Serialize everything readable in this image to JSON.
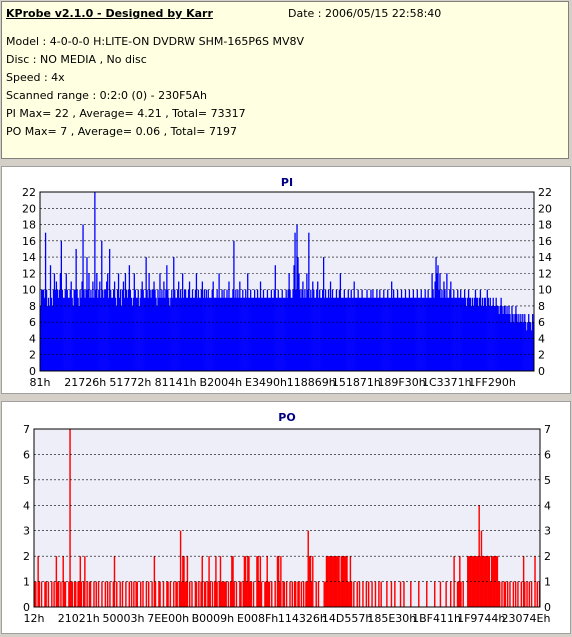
{
  "header": {
    "title": "KProbe v2.1.0 - Designed by Karr",
    "date": "Date : 2006/05/15 22:58:40",
    "model": "Model : 4-0-0-0 H:LITE-ON DVDRW SHM-165P6S MV8V",
    "disc": "Disc : NO MEDIA , No disc",
    "speed": "Speed : 4x",
    "scanned_range": "Scanned range : 0:2:0 (0) - 230F5Ah",
    "pi_stats": "PI Max= 22 , Average= 4.21 , Total= 73317",
    "po_stats": "PO Max= 7 , Average= 0.06 , Total= 7197"
  },
  "colors": {
    "pi_bar": "#0000ff",
    "po_bar": "#ff0000",
    "plot_bg": "#eeeef8",
    "grid": "#000000",
    "title": "#000080",
    "info_bg": "#ffffe1",
    "window_bg": "#d4d0c8"
  },
  "chart_data": [
    {
      "type": "bar",
      "title": "PI",
      "xlabel": "",
      "ylabel": "",
      "ylim": [
        0,
        22
      ],
      "yticks": [
        0,
        2,
        4,
        6,
        8,
        10,
        12,
        14,
        16,
        18,
        20,
        22
      ],
      "xticks": [
        "81h",
        "21726h",
        "51772h",
        "81141h",
        "B2004h",
        "E3490h",
        "118869h",
        "151871h",
        "189F30h",
        "1C3371h",
        "1FF290h"
      ],
      "grid": true,
      "series": [
        {
          "values": [
            8,
            10,
            10,
            10,
            9,
            17,
            10,
            8,
            9,
            8,
            13,
            9,
            8,
            10,
            12,
            10,
            11,
            10,
            9,
            10,
            12,
            16,
            10,
            9,
            9,
            10,
            12,
            10,
            9,
            9,
            10,
            11,
            9,
            8,
            10,
            10,
            15,
            10,
            9,
            8,
            10,
            9,
            11,
            18,
            10,
            9,
            10,
            14,
            10,
            12,
            9,
            10,
            9,
            11,
            9,
            22,
            10,
            12,
            9,
            10,
            11,
            9,
            16,
            10,
            9,
            10,
            10,
            11,
            12,
            9,
            15,
            10,
            9,
            9,
            10,
            11,
            9,
            8,
            10,
            12,
            9,
            10,
            8,
            10,
            11,
            9,
            12,
            10,
            9,
            10,
            13,
            10,
            9,
            8,
            9,
            12,
            10,
            9,
            9,
            10,
            8,
            9,
            10,
            11,
            10,
            9,
            9,
            14,
            10,
            9,
            12,
            10,
            9,
            10,
            10,
            11,
            10,
            9,
            8,
            10,
            9,
            12,
            9,
            10,
            9,
            11,
            9,
            10,
            13,
            10,
            9,
            8,
            9,
            10,
            9,
            14,
            10,
            9,
            9,
            10,
            11,
            9,
            10,
            9,
            12,
            9,
            10,
            10,
            9,
            9,
            10,
            11,
            9,
            9,
            10,
            9,
            9,
            10,
            12,
            9,
            10,
            9,
            9,
            10,
            11,
            9,
            10,
            9,
            10,
            9,
            10,
            9,
            9,
            9,
            10,
            11,
            9,
            9,
            9,
            10,
            9,
            12,
            9,
            9,
            10,
            9,
            10,
            9,
            9,
            10,
            9,
            11,
            9,
            9,
            9,
            10,
            16,
            9,
            10,
            9,
            10,
            9,
            11,
            9,
            9,
            10,
            9,
            9,
            10,
            9,
            12,
            9,
            9,
            10,
            9,
            9,
            9,
            10,
            9,
            9,
            10,
            9,
            9,
            11,
            9,
            9,
            10,
            9,
            9,
            9,
            10,
            9,
            9,
            9,
            10,
            9,
            9,
            10,
            13,
            9,
            9,
            10,
            9,
            9,
            9,
            10,
            9,
            9,
            9,
            10,
            9,
            10,
            12,
            10,
            9,
            9,
            10,
            13,
            17,
            10,
            18,
            14,
            12,
            10,
            9,
            10,
            11,
            9,
            10,
            9,
            12,
            10,
            17,
            9,
            10,
            9,
            11,
            10,
            9,
            9,
            10,
            11,
            9,
            10,
            9,
            9,
            10,
            14,
            9,
            10,
            9,
            9,
            10,
            9,
            11,
            9,
            10,
            9,
            9,
            9,
            10,
            9,
            9,
            10,
            12,
            9,
            9,
            9,
            10,
            9,
            9,
            9,
            10,
            9,
            9,
            10,
            9,
            9,
            11,
            9,
            9,
            9,
            10,
            9,
            9,
            9,
            10,
            9,
            9,
            9,
            9,
            10,
            9,
            9,
            9,
            10,
            9,
            10,
            9,
            9,
            9,
            10,
            9,
            9,
            10,
            9,
            9,
            9,
            10,
            9,
            9,
            9,
            10,
            9,
            9,
            9,
            11,
            9,
            10,
            9,
            9,
            9,
            10,
            9,
            9,
            9,
            10,
            9,
            9,
            9,
            10,
            9,
            9,
            9,
            10,
            9,
            9,
            9,
            10,
            9,
            9,
            9,
            10,
            9,
            9,
            9,
            10,
            9,
            9,
            9,
            10,
            9,
            9,
            10,
            9,
            9,
            9,
            12,
            10,
            9,
            11,
            14,
            12,
            13,
            10,
            12,
            9,
            10,
            9,
            11,
            10,
            9,
            12,
            9,
            9,
            10,
            11,
            9,
            9,
            10,
            9,
            9,
            9,
            10,
            9,
            9,
            10,
            9,
            9,
            9,
            10,
            9,
            8,
            9,
            10,
            9,
            9,
            8,
            9,
            8,
            9,
            10,
            9,
            9,
            8,
            9,
            10,
            8,
            9,
            8,
            9,
            9,
            8,
            10,
            9,
            8,
            9,
            8,
            8,
            9,
            8,
            8,
            9,
            8,
            8,
            7,
            8,
            9,
            8,
            7,
            8,
            8,
            7,
            8,
            7,
            8,
            7,
            6,
            8,
            7,
            6,
            7,
            8,
            7,
            6,
            7,
            6,
            7,
            6,
            7,
            6,
            7,
            6,
            5,
            6,
            7,
            6,
            6,
            5,
            7,
            6
          ]
        }
      ]
    },
    {
      "type": "bar",
      "title": "PO",
      "xlabel": "",
      "ylabel": "",
      "ylim": [
        0,
        7
      ],
      "yticks": [
        0,
        1,
        2,
        3,
        4,
        5,
        6,
        7
      ],
      "xticks": [
        "12h",
        "21021h",
        "50003h",
        "7EE00h",
        "B0009h",
        "E008Fh",
        "114326h",
        "14D557h",
        "185E30h",
        "1BF411h",
        "1F9744h",
        "23074Eh"
      ],
      "grid": true,
      "series": [
        {
          "values": [
            1,
            1,
            0,
            2,
            1,
            0,
            1,
            0,
            0,
            1,
            1,
            0,
            1,
            0,
            0,
            1,
            0,
            1,
            0,
            2,
            1,
            1,
            0,
            1,
            0,
            2,
            1,
            1,
            0,
            0,
            1,
            7,
            1,
            1,
            0,
            1,
            1,
            0,
            1,
            1,
            2,
            1,
            0,
            1,
            2,
            0,
            1,
            0,
            1,
            1,
            0,
            0,
            1,
            0,
            1,
            0,
            1,
            0,
            0,
            1,
            0,
            0,
            1,
            0,
            1,
            0,
            1,
            0,
            0,
            1,
            2,
            0,
            1,
            0,
            0,
            1,
            0,
            1,
            0,
            0,
            1,
            0,
            0,
            1,
            0,
            1,
            0,
            1,
            0,
            1,
            1,
            0,
            0,
            1,
            0,
            1,
            0,
            0,
            1,
            0,
            1,
            0,
            0,
            1,
            0,
            2,
            1,
            0,
            0,
            1,
            1,
            0,
            0,
            1,
            0,
            0,
            1,
            1,
            0,
            1,
            0,
            0,
            1,
            0,
            1,
            1,
            0,
            1,
            3,
            1,
            2,
            2,
            1,
            1,
            2,
            0,
            1,
            0,
            1,
            0,
            0,
            1,
            1,
            0,
            1,
            0,
            1,
            2,
            0,
            1,
            1,
            0,
            1,
            2,
            1,
            0,
            1,
            0,
            1,
            2,
            1,
            0,
            1,
            2,
            1,
            1,
            1,
            1,
            1,
            0,
            1,
            0,
            1,
            2,
            2,
            1,
            0,
            1,
            0,
            0,
            1,
            1,
            0,
            1,
            2,
            2,
            1,
            2,
            2,
            1,
            1,
            0,
            1,
            0,
            0,
            2,
            2,
            1,
            2,
            1,
            0,
            0,
            1,
            1,
            2,
            1,
            1,
            0,
            1,
            0,
            0,
            1,
            0,
            2,
            2,
            1,
            2,
            0,
            1,
            1,
            0,
            1,
            0,
            0,
            1,
            0,
            1,
            0,
            1,
            1,
            0,
            1,
            1,
            0,
            1,
            0,
            1,
            0,
            1,
            1,
            3,
            2,
            2,
            1,
            2,
            0,
            0,
            1,
            0,
            1,
            0,
            0,
            0,
            0,
            1,
            1,
            2,
            2,
            2,
            2,
            2,
            2,
            2,
            2,
            2,
            2,
            2,
            2,
            1,
            2,
            2,
            2,
            2,
            2,
            2,
            1,
            1,
            2,
            1,
            0,
            1,
            0,
            0,
            1,
            0,
            1,
            0,
            0,
            1,
            0,
            0,
            1,
            0,
            1,
            0,
            0,
            1,
            0,
            0,
            1,
            0,
            0,
            1,
            0,
            1,
            0,
            0,
            0,
            0,
            1,
            0,
            0,
            0,
            1,
            0,
            0,
            1,
            0,
            0,
            0,
            0,
            1,
            0,
            0,
            1,
            0,
            0,
            0,
            0,
            0,
            1,
            0,
            0,
            0,
            0,
            0,
            0,
            1,
            0,
            0,
            0,
            0,
            0,
            0,
            1,
            0,
            0,
            0,
            0,
            0,
            0,
            1,
            0,
            0,
            0,
            0,
            1,
            0,
            0,
            0,
            0,
            1,
            0,
            0,
            0,
            1,
            0,
            0,
            2,
            0,
            0,
            1,
            1,
            2,
            1,
            0,
            1,
            0,
            0,
            0,
            2,
            2,
            2,
            2,
            2,
            2,
            2,
            2,
            2,
            2,
            4,
            2,
            3,
            2,
            2,
            2,
            2,
            2,
            2,
            2,
            1,
            2,
            2,
            2,
            2,
            2,
            2,
            1,
            1,
            0,
            1,
            0,
            1,
            1,
            0,
            1,
            0,
            1,
            0,
            0,
            1,
            0,
            1,
            0,
            1,
            0,
            0,
            1,
            0,
            2,
            1,
            0,
            1,
            0,
            1,
            0,
            1,
            0,
            0,
            2,
            0,
            1,
            0,
            1
          ]
        }
      ]
    }
  ]
}
